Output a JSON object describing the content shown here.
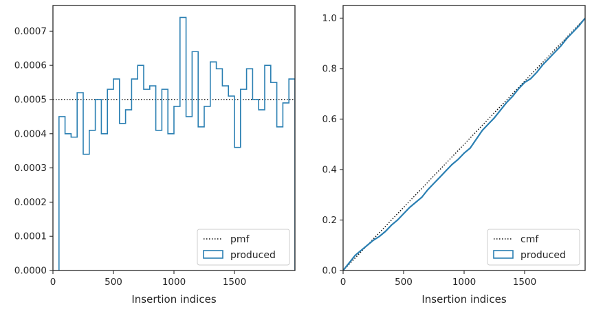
{
  "colors": {
    "series": "#2a7fb2",
    "reference": "#111111",
    "axes": "#262626",
    "legend_border": "#cccccc"
  },
  "chart_data": [
    {
      "type": "histogram",
      "xlabel": "Insertion indices",
      "ylabel": "",
      "xlim": [
        0,
        2000
      ],
      "ylim": [
        0,
        0.000775
      ],
      "xticks": [
        0,
        500,
        1000,
        1500
      ],
      "xtick_labels": [
        "0",
        "500",
        "1000",
        "1500"
      ],
      "yticks": [
        0,
        0.0001,
        0.0002,
        0.0003,
        0.0004,
        0.0005,
        0.0006,
        0.0007
      ],
      "ytick_labels": [
        "0.0000",
        "0.0001",
        "0.0002",
        "0.0003",
        "0.0004",
        "0.0005",
        "0.0006",
        "0.0007"
      ],
      "legend": {
        "location": "lower-right",
        "entries": [
          "pmf",
          "produced"
        ]
      },
      "reference_line": {
        "name": "pmf",
        "x": [
          0,
          2000
        ],
        "y": [
          0.0005,
          0.0005
        ],
        "style": "dotted"
      },
      "bins": {
        "name": "produced",
        "edges": [
          50,
          100,
          150,
          200,
          250,
          300,
          350,
          400,
          450,
          500,
          550,
          600,
          650,
          700,
          750,
          800,
          850,
          900,
          950,
          1000,
          1050,
          1100,
          1150,
          1200,
          1250,
          1300,
          1350,
          1400,
          1450,
          1500,
          1550,
          1600,
          1650,
          1700,
          1750,
          1800,
          1850,
          1900,
          1950,
          2000
        ],
        "values": [
          0.00045,
          0.0004,
          0.00039,
          0.00052,
          0.00034,
          0.00041,
          0.0005,
          0.0004,
          0.00053,
          0.00056,
          0.00043,
          0.00047,
          0.00056,
          0.0006,
          0.00053,
          0.00054,
          0.00041,
          0.00053,
          0.0004,
          0.00048,
          0.00074,
          0.00045,
          0.00064,
          0.00042,
          0.00048,
          0.00061,
          0.00059,
          0.00054,
          0.00051,
          0.00036,
          0.00053,
          0.00059,
          0.0005,
          0.00047,
          0.0006,
          0.00055,
          0.00042,
          0.00049,
          0.00056
        ]
      }
    },
    {
      "type": "line",
      "xlabel": "Insertion indices",
      "ylabel": "",
      "xlim": [
        0,
        2000
      ],
      "ylim": [
        0,
        1.05
      ],
      "xticks": [
        0,
        500,
        1000,
        1500
      ],
      "xtick_labels": [
        "0",
        "500",
        "1000",
        "1500"
      ],
      "yticks": [
        0,
        0.2,
        0.4,
        0.6,
        0.8,
        1.0
      ],
      "ytick_labels": [
        "0.0",
        "0.2",
        "0.4",
        "0.6",
        "0.8",
        "1.0"
      ],
      "legend": {
        "location": "lower-right",
        "entries": [
          "cmf",
          "produced"
        ]
      },
      "reference_line": {
        "name": "cmf",
        "x": [
          0,
          2000
        ],
        "y": [
          0,
          1
        ],
        "style": "dotted"
      },
      "series": [
        {
          "name": "produced",
          "x": [
            0,
            50,
            100,
            150,
            200,
            250,
            300,
            350,
            400,
            450,
            500,
            550,
            600,
            650,
            700,
            750,
            800,
            850,
            900,
            950,
            1000,
            1050,
            1100,
            1150,
            1200,
            1250,
            1300,
            1350,
            1400,
            1450,
            1500,
            1550,
            1600,
            1650,
            1700,
            1750,
            1800,
            1850,
            1900,
            1950,
            2000
          ],
          "y": [
            0,
            0.03,
            0.06,
            0.08,
            0.1,
            0.12,
            0.135,
            0.155,
            0.18,
            0.2,
            0.225,
            0.25,
            0.27,
            0.29,
            0.32,
            0.345,
            0.37,
            0.395,
            0.42,
            0.44,
            0.465,
            0.485,
            0.52,
            0.555,
            0.58,
            0.605,
            0.635,
            0.665,
            0.69,
            0.72,
            0.745,
            0.76,
            0.785,
            0.815,
            0.84,
            0.865,
            0.89,
            0.92,
            0.945,
            0.97,
            1.0
          ]
        }
      ]
    }
  ]
}
